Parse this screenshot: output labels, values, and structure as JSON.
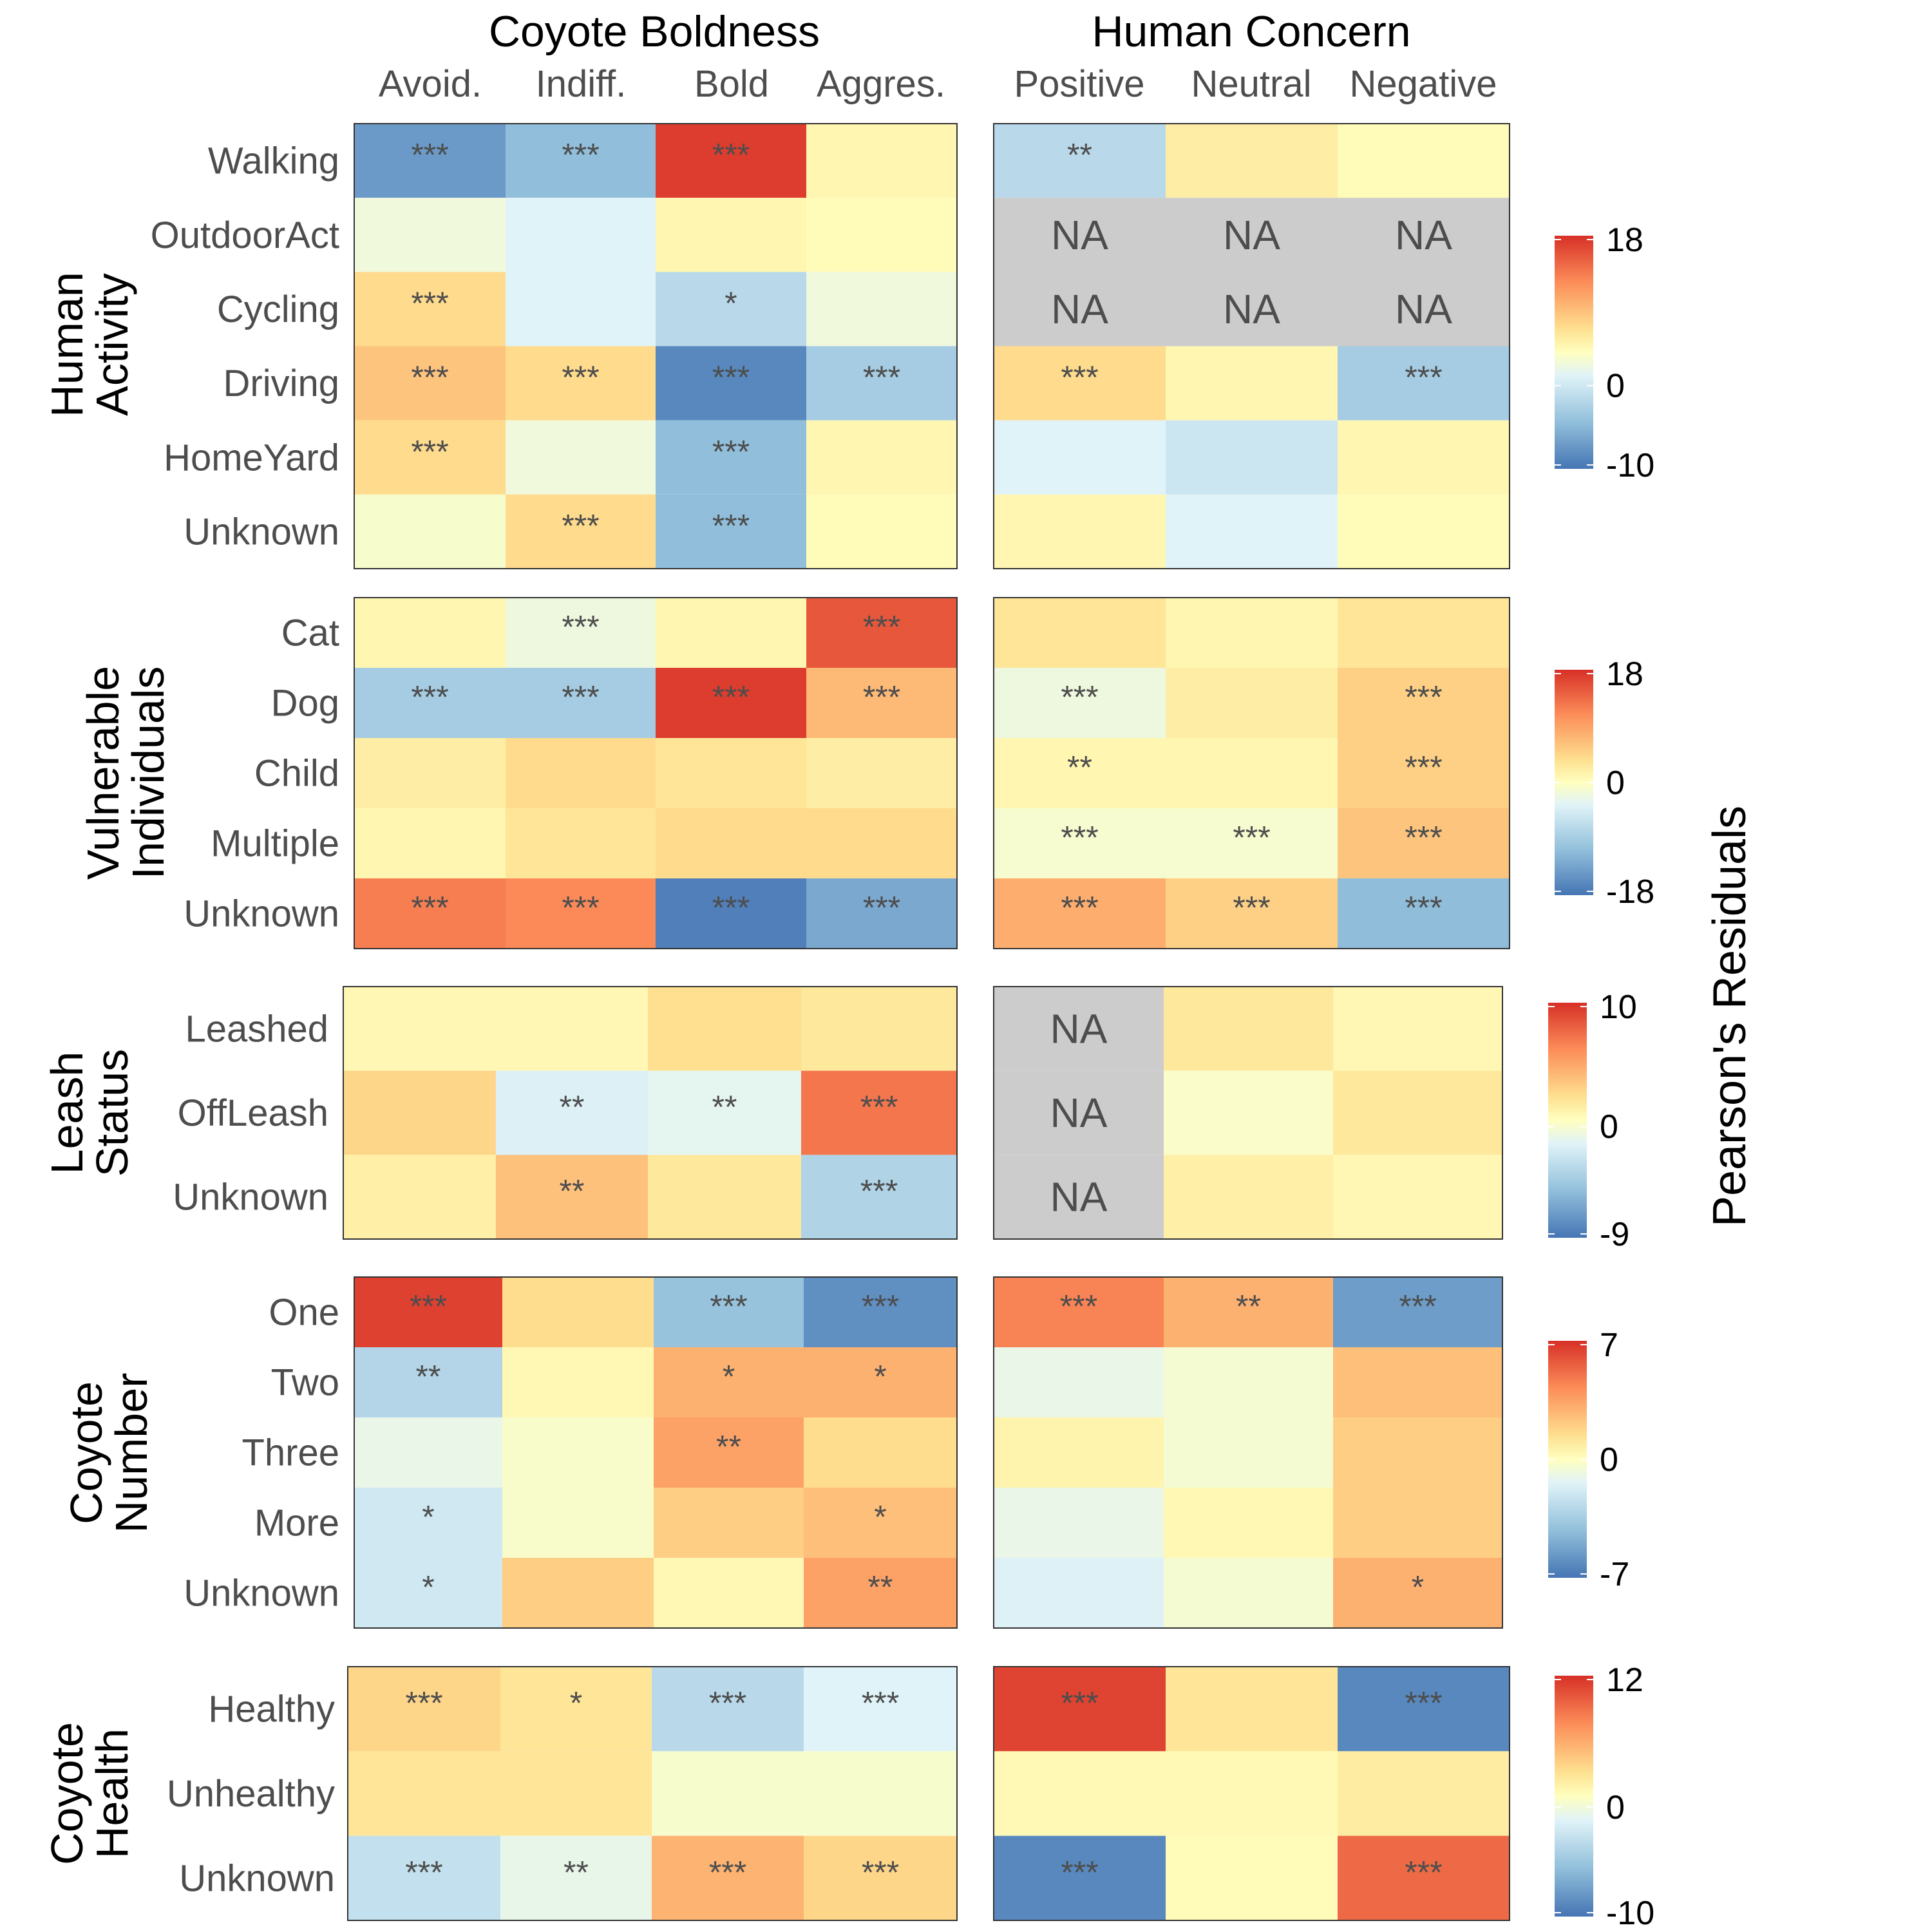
{
  "chart_data": {
    "type": "heatmap",
    "headers": {
      "boldness": {
        "title": "Coyote Boldness",
        "columns": [
          "Avoid.",
          "Indiff.",
          "Bold",
          "Aggres."
        ]
      },
      "concern": {
        "title": "Human Concern",
        "columns": [
          "Positive",
          "Neutral",
          "Negative"
        ]
      }
    },
    "legend_title": "Pearson's Residuals",
    "panels": [
      {
        "group_label": [
          "Human",
          "Activity"
        ],
        "rows": [
          "Walking",
          "OutdoorAct",
          "Cycling",
          "Driving",
          "HomeYard",
          "Unknown"
        ],
        "scale": {
          "min": -10,
          "max": 18,
          "ticks": [
            18,
            0,
            -10
          ]
        },
        "boldness": {
          "values": [
            [
              -8,
              -6,
              17,
              1
            ],
            [
              -1,
              -2,
              1,
              0.5
            ],
            [
              4,
              -2,
              -4,
              -1
            ],
            [
              6,
              4,
              -9,
              -5
            ],
            [
              4,
              -1,
              -6,
              1
            ],
            [
              -0.5,
              4,
              -6,
              0.5
            ]
          ],
          "sig": [
            [
              "***",
              "***",
              "***",
              ""
            ],
            [
              "",
              "",
              "",
              ""
            ],
            [
              "***",
              "",
              "*",
              ""
            ],
            [
              "***",
              "***",
              "***",
              "***"
            ],
            [
              "***",
              "",
              "***",
              ""
            ],
            [
              "",
              "***",
              "***",
              ""
            ]
          ]
        },
        "concern": {
          "values": [
            [
              -4,
              2,
              0.5
            ],
            [
              null,
              null,
              null
            ],
            [
              null,
              null,
              null
            ],
            [
              4,
              1,
              -5
            ],
            [
              -2,
              -3,
              1
            ],
            [
              1,
              -2,
              0.5
            ]
          ],
          "sig": [
            [
              "**",
              "",
              ""
            ],
            [
              "NA",
              "NA",
              "NA"
            ],
            [
              "NA",
              "NA",
              "NA"
            ],
            [
              "***",
              "",
              "***"
            ],
            [
              "",
              "",
              ""
            ],
            [
              "",
              "",
              ""
            ]
          ]
        }
      },
      {
        "group_label": [
          "Vulnerable",
          "Individuals"
        ],
        "rows": [
          "Cat",
          "Dog",
          "Child",
          "Multiple",
          "Unknown"
        ],
        "scale": {
          "min": -18,
          "max": 18,
          "ticks": [
            18,
            0,
            -18
          ]
        },
        "boldness": {
          "values": [
            [
              1,
              -2,
              1,
              15
            ],
            [
              -9,
              -9,
              17,
              7
            ],
            [
              2,
              4,
              3,
              2
            ],
            [
              1,
              3,
              4,
              4
            ],
            [
              12,
              11,
              -17,
              -13
            ]
          ],
          "sig": [
            [
              "",
              "***",
              "",
              "***"
            ],
            [
              "***",
              "***",
              "***",
              "***"
            ],
            [
              "",
              "",
              "",
              ""
            ],
            [
              "",
              "",
              "",
              ""
            ],
            [
              "***",
              "***",
              "***",
              "***"
            ]
          ]
        },
        "concern": {
          "values": [
            [
              3,
              1,
              3
            ],
            [
              -2,
              2,
              5
            ],
            [
              1,
              1,
              5
            ],
            [
              -1,
              -1,
              6
            ],
            [
              8,
              5,
              -11
            ]
          ],
          "sig": [
            [
              "",
              "",
              ""
            ],
            [
              "***",
              "",
              "***"
            ],
            [
              "**",
              "",
              "***"
            ],
            [
              "***",
              "***",
              "***"
            ],
            [
              "***",
              "***",
              "***"
            ]
          ]
        }
      },
      {
        "group_label": [
          "Leash",
          "Status"
        ],
        "rows": [
          "Leashed",
          "OffLeash",
          "Unknown"
        ],
        "scale": {
          "min": -9,
          "max": 10,
          "ticks": [
            10,
            0,
            -9
          ]
        },
        "boldness": {
          "values": [
            [
              0.5,
              0.5,
              2,
              1.5
            ],
            [
              2.5,
              -2,
              -1.5,
              7
            ],
            [
              1,
              3.5,
              1.5,
              -4
            ]
          ],
          "sig": [
            [
              "",
              "",
              "",
              ""
            ],
            [
              "",
              "**",
              "**",
              "***"
            ],
            [
              "",
              "**",
              "",
              "***"
            ]
          ]
        },
        "concern": {
          "values": [
            [
              null,
              1.5,
              0.5
            ],
            [
              null,
              -0.3,
              1.5
            ],
            [
              null,
              1,
              0.5
            ]
          ],
          "sig": [
            [
              "NA",
              "",
              ""
            ],
            [
              "NA",
              "",
              ""
            ],
            [
              "NA",
              "",
              ""
            ]
          ]
        }
      },
      {
        "group_label": [
          "Coyote",
          "Number"
        ],
        "rows": [
          "One",
          "Two",
          "Three",
          "More",
          "Unknown"
        ],
        "scale": {
          "min": -7,
          "max": 7,
          "ticks": [
            7,
            0,
            -7
          ]
        },
        "boldness": {
          "values": [
            [
              6.5,
              1.5,
              -4,
              -6
            ],
            [
              -3,
              0.3,
              3,
              3
            ],
            [
              -1,
              -0.3,
              3.5,
              1.5
            ],
            [
              -2,
              -0.3,
              2,
              2.5
            ],
            [
              -2,
              2,
              0.3,
              3.5
            ]
          ],
          "sig": [
            [
              "***",
              "",
              "***",
              "***"
            ],
            [
              "**",
              "",
              "*",
              "*"
            ],
            [
              "",
              "",
              "**",
              ""
            ],
            [
              "*",
              "",
              "",
              "*"
            ],
            [
              "*",
              "",
              "",
              "**"
            ]
          ]
        },
        "concern": {
          "values": [
            [
              4.5,
              3,
              -5.5
            ],
            [
              -1,
              -0.5,
              2.5
            ],
            [
              0.5,
              -0.5,
              2
            ],
            [
              -1,
              0.3,
              2
            ],
            [
              -1.5,
              -0.5,
              3
            ]
          ],
          "sig": [
            [
              "***",
              "**",
              "***"
            ],
            [
              "",
              "",
              ""
            ],
            [
              "",
              "",
              ""
            ],
            [
              "",
              "",
              ""
            ],
            [
              "",
              "",
              "*"
            ]
          ]
        }
      },
      {
        "group_label": [
          "Coyote",
          "Health"
        ],
        "rows": [
          "Healthy",
          "Unhealthy",
          "Unknown"
        ],
        "scale": {
          "min": -10,
          "max": 12,
          "ticks": [
            12,
            0,
            -10
          ]
        },
        "boldness": {
          "values": [
            [
              3,
              2,
              -4,
              -2
            ],
            [
              2,
              2,
              -0.5,
              -0.5
            ],
            [
              -3.5,
              -1.5,
              5,
              3
            ]
          ],
          "sig": [
            [
              "***",
              "*",
              "***",
              "***"
            ],
            [
              "",
              "",
              "",
              ""
            ],
            [
              "***",
              "**",
              "***",
              "***"
            ]
          ]
        },
        "concern": {
          "values": [
            [
              11,
              2,
              -9
            ],
            [
              0.5,
              0.5,
              1.5
            ],
            [
              -9,
              0.3,
              9
            ]
          ],
          "sig": [
            [
              "***",
              "",
              "***"
            ],
            [
              "",
              "",
              ""
            ],
            [
              "***",
              "",
              "***"
            ]
          ]
        }
      }
    ]
  }
}
